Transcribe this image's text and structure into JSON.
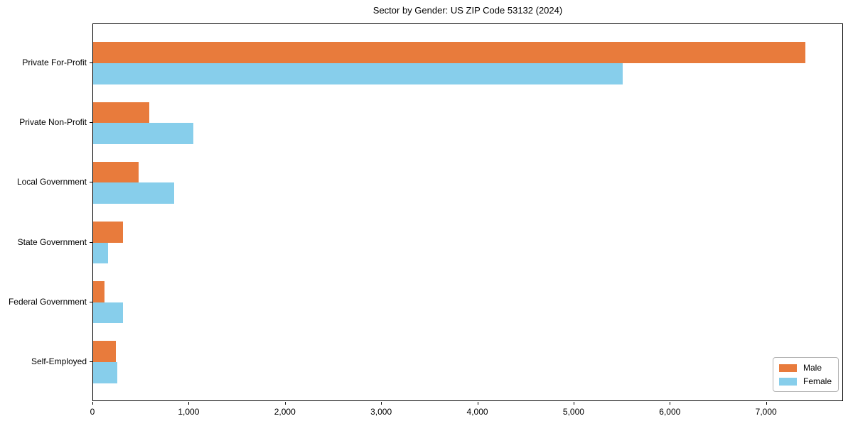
{
  "chart_data": {
    "type": "bar",
    "orientation": "horizontal",
    "title": "Sector by Gender: US ZIP Code 53132 (2024)",
    "categories": [
      "Private For-Profit",
      "Private Non-Profit",
      "Local Government",
      "State Government",
      "Federal Government",
      "Self-Employed"
    ],
    "series": [
      {
        "name": "Male",
        "color": "#e87b3c",
        "values": [
          7400,
          580,
          470,
          310,
          115,
          240
        ]
      },
      {
        "name": "Female",
        "color": "#87ceeb",
        "values": [
          5500,
          1040,
          845,
          155,
          310,
          250
        ]
      }
    ],
    "xlabel": "",
    "ylabel": "",
    "xlim": [
      0,
      7800
    ],
    "xticks": [
      0,
      1000,
      2000,
      3000,
      4000,
      5000,
      6000,
      7000
    ],
    "xtick_labels": [
      "0",
      "1,000",
      "2,000",
      "3,000",
      "4,000",
      "5,000",
      "6,000",
      "7,000"
    ],
    "grid": false,
    "legend": {
      "position": "lower right"
    }
  }
}
